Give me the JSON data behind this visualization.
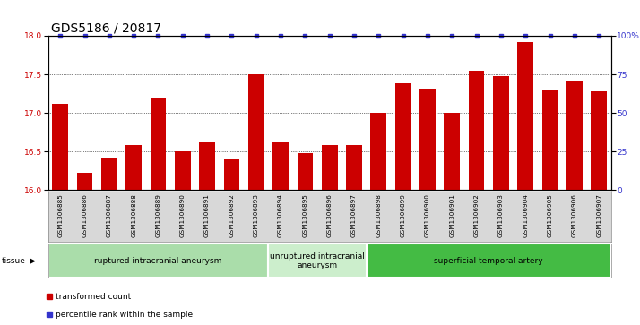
{
  "title": "GDS5186 / 20817",
  "samples": [
    "GSM1306885",
    "GSM1306886",
    "GSM1306887",
    "GSM1306888",
    "GSM1306889",
    "GSM1306890",
    "GSM1306891",
    "GSM1306892",
    "GSM1306893",
    "GSM1306894",
    "GSM1306895",
    "GSM1306896",
    "GSM1306897",
    "GSM1306898",
    "GSM1306899",
    "GSM1306900",
    "GSM1306901",
    "GSM1306902",
    "GSM1306903",
    "GSM1306904",
    "GSM1306905",
    "GSM1306906",
    "GSM1306907"
  ],
  "bar_values": [
    17.12,
    16.22,
    16.42,
    16.58,
    17.2,
    16.5,
    16.62,
    16.4,
    17.5,
    16.62,
    16.48,
    16.58,
    16.58,
    17.0,
    17.38,
    17.32,
    17.0,
    17.55,
    17.48,
    17.92,
    17.3,
    17.42,
    17.28
  ],
  "percentile_values": [
    100,
    100,
    100,
    100,
    100,
    100,
    100,
    100,
    100,
    100,
    100,
    100,
    100,
    100,
    100,
    100,
    100,
    100,
    100,
    100,
    100,
    100,
    100
  ],
  "bar_color": "#cc0000",
  "percentile_color": "#3333cc",
  "ylim_left": [
    16,
    18
  ],
  "ylim_right": [
    0,
    100
  ],
  "yticks_left": [
    16,
    16.5,
    17,
    17.5,
    18
  ],
  "yticks_right": [
    0,
    25,
    50,
    75,
    100
  ],
  "ytick_labels_right": [
    "0",
    "25",
    "50",
    "75",
    "100%"
  ],
  "groups": [
    {
      "label": "ruptured intracranial aneurysm",
      "start": 0,
      "end": 9,
      "color": "#aaddaa"
    },
    {
      "label": "unruptured intracranial\naneurysm",
      "start": 9,
      "end": 13,
      "color": "#cceecc"
    },
    {
      "label": "superficial temporal artery",
      "start": 13,
      "end": 23,
      "color": "#44bb44"
    }
  ],
  "tissue_label": "tissue",
  "legend_items": [
    {
      "label": "transformed count",
      "color": "#cc0000",
      "marker": "s"
    },
    {
      "label": "percentile rank within the sample",
      "color": "#3333cc",
      "marker": "s"
    }
  ],
  "bg_color": "#d8d8d8",
  "plot_bg_color": "#ffffff",
  "grid_color": "#000000",
  "title_fontsize": 10,
  "tick_fontsize": 6.5,
  "axis_label_color_left": "#cc0000",
  "axis_label_color_right": "#3333cc"
}
